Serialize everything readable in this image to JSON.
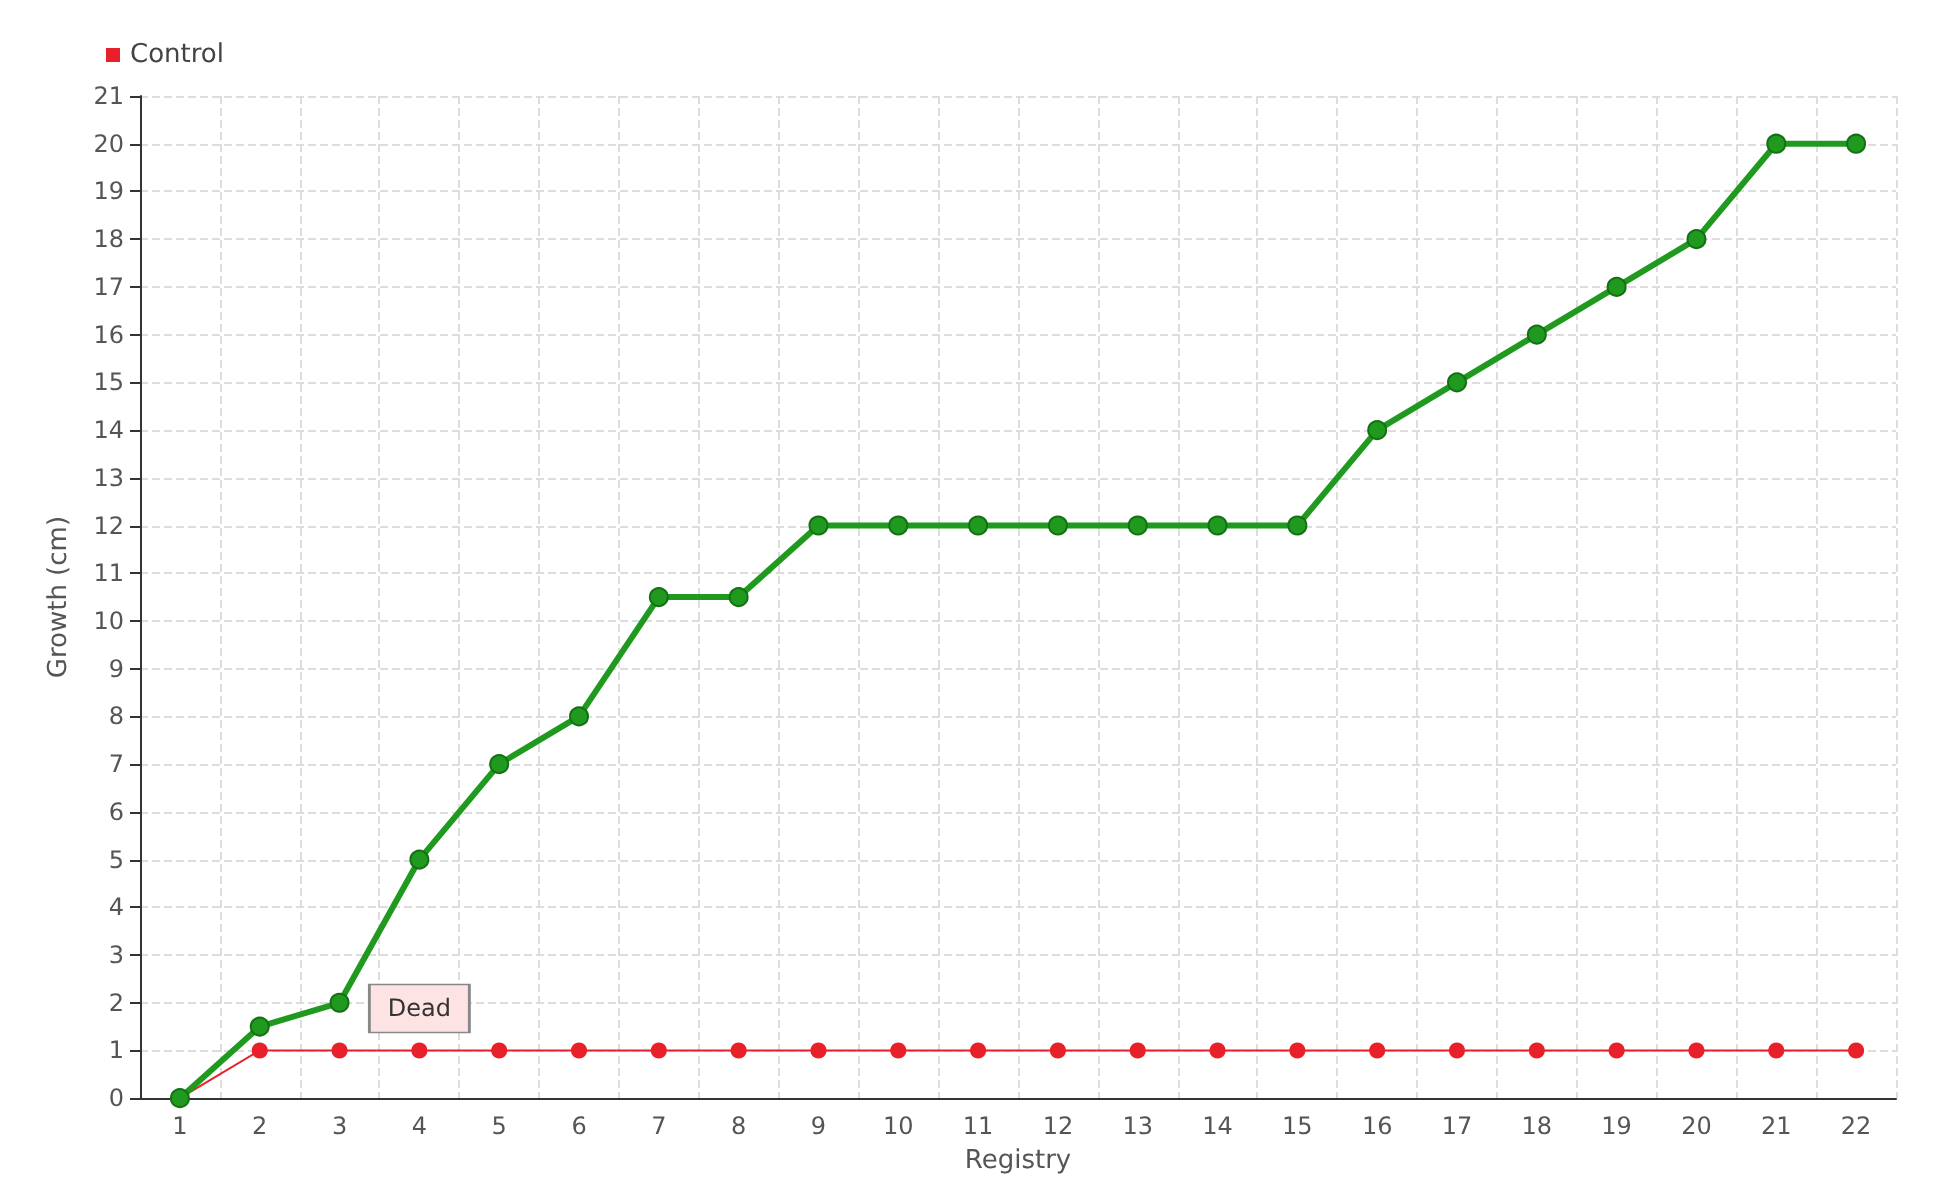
{
  "chart_data": {
    "type": "line",
    "xlabel": "Registry",
    "ylabel": "Growth (cm)",
    "categories": [
      "1",
      "2",
      "3",
      "4",
      "5",
      "6",
      "7",
      "8",
      "9",
      "10",
      "11",
      "12",
      "13",
      "14",
      "15",
      "16",
      "17",
      "18",
      "19",
      "20",
      "21",
      "22"
    ],
    "series": [
      {
        "color": "#1f9a1f",
        "values": [
          0,
          1.5,
          2,
          5,
          7,
          8,
          10.5,
          10.5,
          12,
          12,
          12,
          12,
          12,
          12,
          12,
          14,
          15,
          16,
          17,
          18,
          20,
          20
        ]
      },
      {
        "name": "Control",
        "color": "#e8202a",
        "values": [
          0,
          1,
          1,
          1,
          1,
          1,
          1,
          1,
          1,
          1,
          1,
          1,
          1,
          1,
          1,
          1,
          1,
          1,
          1,
          1,
          1,
          1
        ]
      }
    ],
    "annotations": [
      {
        "text": "Dead",
        "x": "4",
        "y": 1
      }
    ],
    "ylim": [
      0,
      21
    ],
    "yticks": [
      0,
      1,
      2,
      3,
      4,
      5,
      6,
      7,
      8,
      9,
      10,
      11,
      12,
      13,
      14,
      15,
      16,
      17,
      18,
      19,
      20,
      21
    ],
    "grid": true,
    "legend": "top left",
    "marker": "circle",
    "line_style": "solid"
  }
}
